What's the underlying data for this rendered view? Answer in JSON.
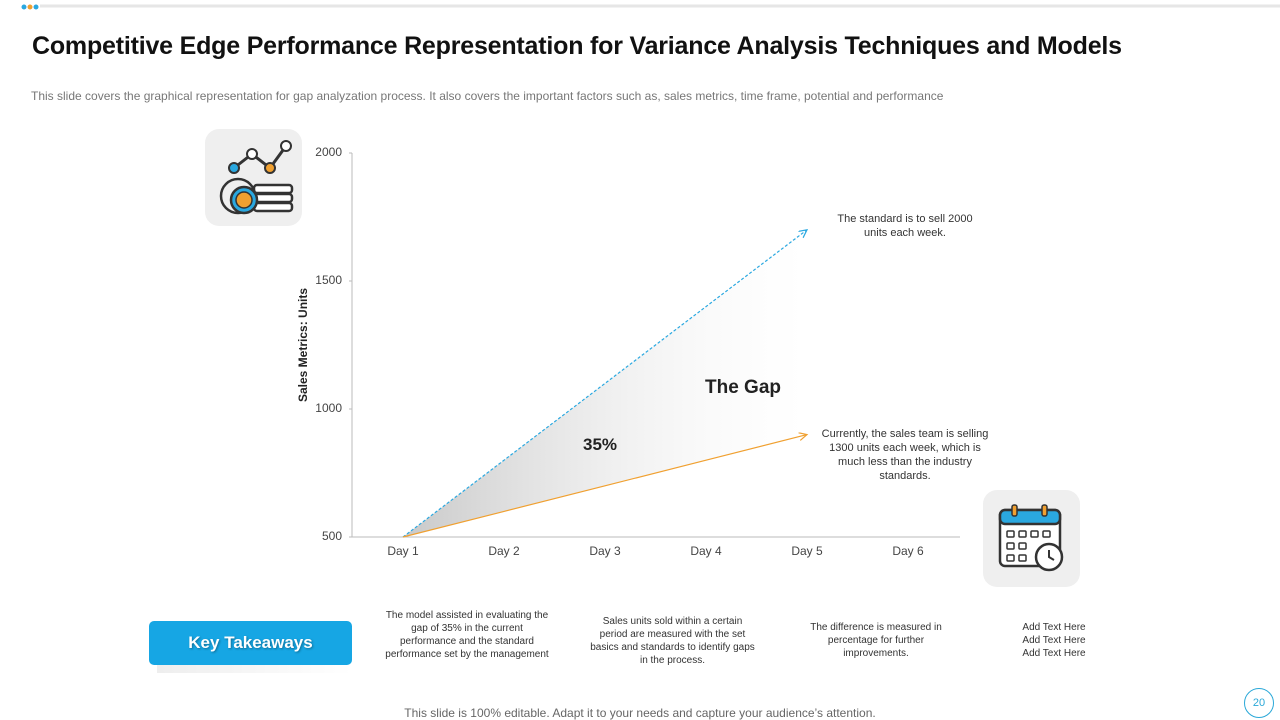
{
  "title": "Competitive Edge Performance Representation for Variance Analysis Techniques and Models",
  "subtitle": "This slide covers the graphical representation for gap analyzation process. It also covers the important factors such as, sales metrics, time frame, potential and performance",
  "chart_data": {
    "type": "line",
    "y_label": "Sales Metrics: Units",
    "categories": [
      "Day 1",
      "Day 2",
      "Day 3",
      "Day 4",
      "Day 5",
      "Day 6"
    ],
    "series": [
      {
        "color": "#2aa8e0",
        "values": [
          500,
          800,
          1100,
          1400,
          1700,
          null
        ]
      },
      {
        "color": "#f0a030",
        "values": [
          500,
          600,
          700,
          800,
          900,
          null
        ]
      }
    ],
    "ylim": [
      500,
      2000
    ],
    "yticks": [
      500,
      1000,
      1500,
      2000
    ],
    "annotations": [
      "The standard is to sell 2000 units each week.",
      "Currently, the sales team is selling 1300 units each week, which is much less than the industry standards.",
      "The Gap",
      "35%"
    ]
  },
  "key_takeaways": {
    "label": "Key Takeaways",
    "items": [
      "The model assisted in evaluating the gap of 35% in the current performance and the standard performance set by the management",
      "Sales units sold within a certain period are measured with the set basics and standards to identify gaps in the process.",
      "The difference is measured in percentage for further improvements.",
      "Add Text Here Add Text Here Add Text Here"
    ]
  },
  "footer": "This slide is 100% editable. Adapt it to your needs and capture your audience’s attention.",
  "page_number": "20"
}
